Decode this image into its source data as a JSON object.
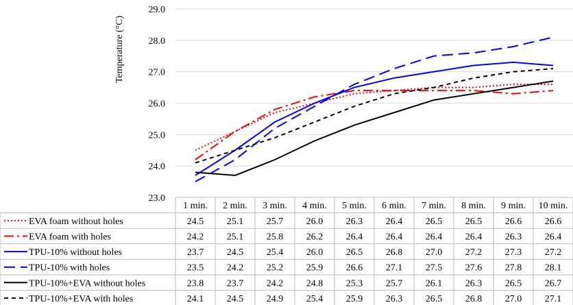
{
  "chart_data": {
    "type": "line",
    "title": "",
    "xlabel": "",
    "ylabel": "Temperature (°C)",
    "ylim": [
      23.0,
      29.0
    ],
    "yticks": [
      "23.0",
      "24.0",
      "25.0",
      "26.0",
      "27.0",
      "28.0",
      "29.0"
    ],
    "grid": true,
    "legend": "data-table-below",
    "categories": [
      "1 min.",
      "2 min.",
      "3 min.",
      "4 min.",
      "5 min.",
      "6 min.",
      "7 min.",
      "8 min.",
      "9 min.",
      "10 min."
    ],
    "series": [
      {
        "name": "EVA foam without holes",
        "color": "#ff0000",
        "dash": "dotted",
        "values": [
          24.5,
          25.1,
          25.7,
          26.0,
          26.3,
          26.4,
          26.5,
          26.5,
          26.6,
          26.6
        ]
      },
      {
        "name": "EVA foam with holes",
        "color": "#ff0000",
        "dash": "dashdot",
        "values": [
          24.2,
          25.1,
          25.8,
          26.2,
          26.4,
          26.4,
          26.4,
          26.4,
          26.3,
          26.4
        ]
      },
      {
        "name": "TPU-10% without holes",
        "color": "#0000ff",
        "dash": "solid",
        "values": [
          23.7,
          24.5,
          25.4,
          26.0,
          26.5,
          26.8,
          27.0,
          27.2,
          27.3,
          27.2
        ]
      },
      {
        "name": "TPU-10% with holes",
        "color": "#0000ff",
        "dash": "longdash",
        "values": [
          23.5,
          24.2,
          25.2,
          25.9,
          26.6,
          27.1,
          27.5,
          27.6,
          27.8,
          28.1
        ]
      },
      {
        "name": "TPU-10%+EVA without holes",
        "color": "#000000",
        "dash": "solid",
        "values": [
          23.8,
          23.7,
          24.2,
          24.8,
          25.3,
          25.7,
          26.1,
          26.3,
          26.5,
          26.7
        ]
      },
      {
        "name": "TPU-10%+EVA with holes",
        "color": "#000000",
        "dash": "dashed",
        "values": [
          24.1,
          24.5,
          24.9,
          25.4,
          25.9,
          26.3,
          26.5,
          26.8,
          27.0,
          27.1
        ]
      }
    ],
    "table_labels": [
      [
        "24.5",
        "25.1",
        "25.7",
        "26.0",
        "26.3",
        "26.4",
        "26.5",
        "26.5",
        "26.6",
        "26.6"
      ],
      [
        "24.2",
        "25.1",
        "25.8",
        "26.2",
        "26.4",
        "26.4",
        "26.4",
        "26.4",
        "26.3",
        "26.4"
      ],
      [
        "23.7",
        "24.5",
        "25.4",
        "26.0",
        "26.5",
        "26.8",
        "27.0",
        "27.2",
        "27.3",
        "27.2"
      ],
      [
        "23.5",
        "24.2",
        "25.2",
        "25.9",
        "26.6",
        "27.1",
        "27.5",
        "27.6",
        "27.8",
        "28.1"
      ],
      [
        "23.8",
        "23.7",
        "24.2",
        "24.8",
        "25.3",
        "25.7",
        "26.1",
        "26.3",
        "26.5",
        "26.7"
      ],
      [
        "24.1",
        "24.5",
        "24.9",
        "25.4",
        "25.9",
        "26.3",
        "26.5",
        "26.8",
        "27.0",
        "27.1"
      ]
    ]
  }
}
